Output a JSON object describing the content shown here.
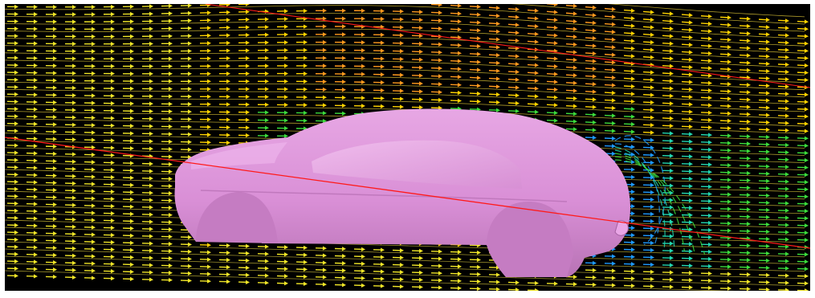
{
  "scene": {
    "background_color": "#000000",
    "frame_color": "#ffffff",
    "body_color": "#d98fd6",
    "body_highlight_color": "#f2b8ef",
    "body_shadow_color": "#a65fa6",
    "cut_line_color": "#ff1a1a",
    "velocity_colormap": [
      "#1e9bff",
      "#22d7b0",
      "#3cdc3c",
      "#a8e62a",
      "#f0e628",
      "#ffd400",
      "#ff9a1e",
      "#ff5a14"
    ],
    "glyph_type": "arrow",
    "object": "car-body"
  }
}
